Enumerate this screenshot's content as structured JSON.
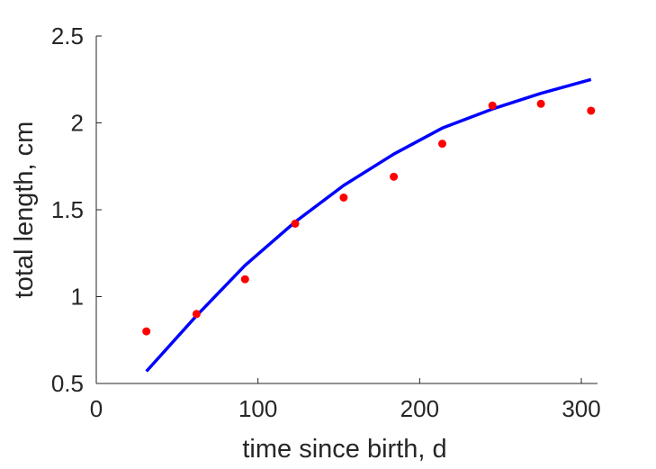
{
  "chart_data": {
    "type": "scatter",
    "xlabel": "time since birth, d",
    "ylabel": "total length, cm",
    "xlim": [
      0,
      310
    ],
    "ylim": [
      0.5,
      2.5
    ],
    "x_ticks": [
      0,
      100,
      200,
      300
    ],
    "x_tick_labels": [
      "0",
      "100",
      "200",
      "300"
    ],
    "y_ticks": [
      0.5,
      1,
      1.5,
      2,
      2.5
    ],
    "y_tick_labels": [
      "0.5",
      "1",
      "1.5",
      "2",
      "2.5"
    ],
    "grid": false,
    "box": "left-bottom",
    "series": [
      {
        "kind": "points",
        "color": "#ff0000",
        "x": [
          31,
          62,
          92,
          123,
          153,
          184,
          214,
          245,
          275,
          306
        ],
        "y": [
          0.8,
          0.9,
          1.1,
          1.42,
          1.57,
          1.69,
          1.88,
          2.1,
          2.11,
          2.07
        ]
      },
      {
        "kind": "line",
        "color": "#0000ff",
        "x": [
          31,
          62,
          92,
          123,
          153,
          184,
          214,
          245,
          275,
          306
        ],
        "y": [
          0.57,
          0.89,
          1.18,
          1.43,
          1.64,
          1.82,
          1.97,
          2.08,
          2.17,
          2.25
        ]
      }
    ]
  }
}
